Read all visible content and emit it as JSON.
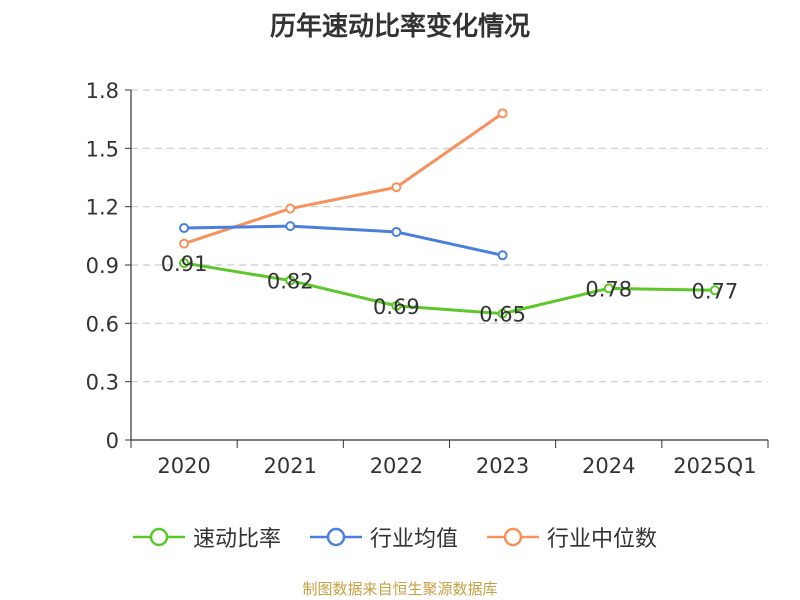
{
  "chart_data": {
    "type": "line",
    "title": "历年速动比率变化情况",
    "categories": [
      "2020",
      "2021",
      "2022",
      "2023",
      "2024",
      "2025Q1"
    ],
    "ylim": [
      0,
      1.8
    ],
    "yticks": [
      "0",
      "0.3",
      "0.6",
      "0.9",
      "1.2",
      "1.5",
      "1.8"
    ],
    "grid": true,
    "legend_position": "bottom",
    "series": [
      {
        "name": "速动比率",
        "color": "#5cc729",
        "values": [
          0.91,
          0.82,
          0.69,
          0.65,
          0.78,
          0.77
        ],
        "labels": [
          "0.91",
          "0.82",
          "0.69",
          "0.65",
          "0.78",
          "0.77"
        ],
        "show_labels": true
      },
      {
        "name": "行业均值",
        "color": "#4a7fdc",
        "values": [
          1.09,
          1.1,
          1.07,
          0.95,
          null,
          null
        ],
        "show_labels": false
      },
      {
        "name": "行业中位数",
        "color": "#f7915d",
        "values": [
          1.01,
          1.19,
          1.3,
          1.68,
          null,
          null
        ],
        "show_labels": false
      }
    ]
  },
  "source_note": "制图数据来自恒生聚源数据库"
}
